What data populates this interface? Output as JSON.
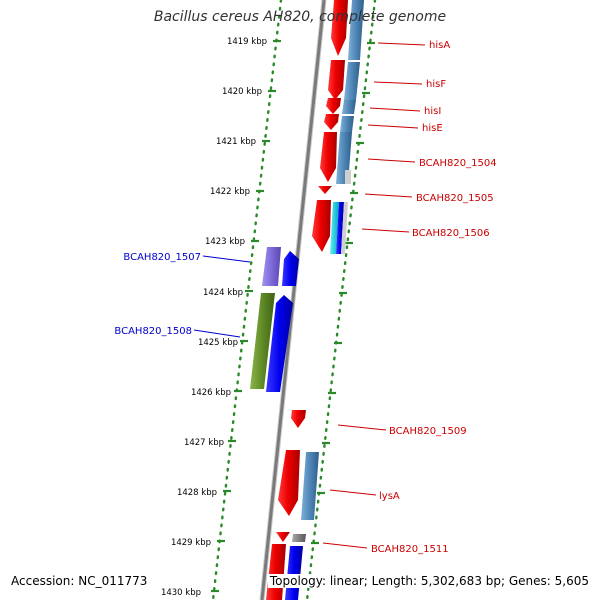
{
  "header": {
    "title": "Bacillus cereus AH820, complete genome"
  },
  "footer": {
    "accession": "Accession: NC_011773",
    "summary": "Topology: linear; Length: 5,302,683 bp; Genes: 5,605"
  },
  "colors": {
    "backbone": "#7a7a7a",
    "ruler_tick": "#2a8a2a",
    "forward_label": "#cc0000",
    "reverse_label": "#0000cc",
    "gene_red": "#ee0000",
    "gene_steelblue": "#4f86b6",
    "gene_blue": "#0000ee",
    "gene_violet": "#7f6ad9",
    "gene_olive": "#5f8a26",
    "gene_cyan": "#00c8d8",
    "gene_gray": "#777777"
  },
  "ruler": {
    "ticks": [
      "1419 kbp",
      "1420 kbp",
      "1421 kbp",
      "1422 kbp",
      "1423 kbp",
      "1424 kbp",
      "1425 kbp",
      "1426 kbp",
      "1427 kbp",
      "1428 kbp",
      "1429 kbp",
      "1430 kbp"
    ]
  },
  "gene_labels": {
    "forward": [
      "hisA",
      "hisF",
      "hisI",
      "hisE",
      "BCAH820_1504",
      "BCAH820_1505",
      "BCAH820_1506",
      "BCAH820_1509",
      "lysA",
      "BCAH820_1511"
    ],
    "reverse": [
      "BCAH820_1507",
      "BCAH820_1508"
    ]
  }
}
